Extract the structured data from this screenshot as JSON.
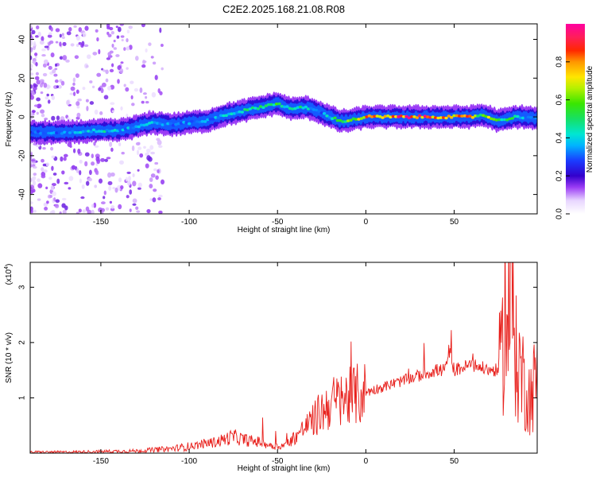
{
  "title": "C2E2.2025.168.21.08.R08",
  "chart_data": [
    {
      "type": "heatmap",
      "title": "C2E2.2025.168.21.08.R08",
      "xlabel": "Height of straight line (km)",
      "ylabel": "Frequency (Hz)",
      "xlim": [
        -190,
        97
      ],
      "ylim": [
        -50,
        48
      ],
      "xticks": [
        -150,
        -100,
        -50,
        0,
        50
      ],
      "yticks": [
        -40,
        -20,
        0,
        20,
        40
      ],
      "colorbar": {
        "label": "Normalized spectral amplitude",
        "range": [
          0,
          1
        ],
        "ticks": [
          0.0,
          0.2,
          0.4,
          0.6,
          0.8
        ],
        "colormap": "white-purple-blue-cyan-green-yellow-red-magenta"
      },
      "ridge": {
        "x": [
          -190,
          -170,
          -150,
          -140,
          -130,
          -120,
          -110,
          -100,
          -90,
          -80,
          -70,
          -60,
          -50,
          -45,
          -40,
          -35,
          -30,
          -25,
          -20,
          -15,
          -10,
          0,
          10,
          20,
          30,
          40,
          50,
          60,
          65,
          70,
          75,
          80,
          85,
          90,
          97
        ],
        "freq": [
          -8,
          -8,
          -7,
          -7,
          -5,
          -3,
          -4,
          -3,
          -2,
          1,
          3,
          5,
          7,
          5,
          4,
          5,
          4,
          2,
          0,
          -2,
          -2,
          0,
          0,
          0,
          0,
          0,
          0,
          0,
          1,
          0,
          -2,
          -1,
          0,
          0,
          -1
        ],
        "amplitude": [
          0.3,
          0.35,
          0.45,
          0.4,
          0.35,
          0.4,
          0.35,
          0.35,
          0.35,
          0.4,
          0.45,
          0.5,
          0.55,
          0.45,
          0.45,
          0.5,
          0.4,
          0.35,
          0.45,
          0.55,
          0.6,
          0.8,
          0.85,
          0.9,
          0.9,
          0.85,
          0.85,
          0.8,
          0.6,
          0.7,
          0.5,
          0.55,
          0.45,
          0.4,
          0.35
        ]
      }
    },
    {
      "type": "line",
      "xlabel": "Height of straight line (km)",
      "ylabel": "SNR (10 * v/v)",
      "y_multiplier": "(x10",
      "y_multiplier_exp": "4",
      "y_multiplier_close": ")",
      "xlim": [
        -190,
        97
      ],
      "ylim": [
        0,
        3.45
      ],
      "xticks": [
        -150,
        -100,
        -50,
        0,
        50
      ],
      "yticks": [
        1,
        2,
        3
      ],
      "color": "#e8201c",
      "series": [
        {
          "x": [
            -190,
            -170,
            -150,
            -130,
            -120,
            -110,
            -100,
            -95,
            -90,
            -85,
            -80,
            -75,
            -70,
            -65,
            -60,
            -55,
            -50,
            -45,
            -40,
            -35,
            -30,
            -25,
            -20,
            -15,
            -10,
            -5,
            0,
            5,
            10,
            15,
            20,
            25,
            30,
            35,
            40,
            45,
            47,
            50,
            55,
            60,
            65,
            70,
            75,
            77,
            79,
            80,
            82,
            85,
            88,
            90,
            93,
            97
          ],
          "y": [
            0.02,
            0.02,
            0.03,
            0.04,
            0.06,
            0.08,
            0.12,
            0.15,
            0.18,
            0.2,
            0.25,
            0.3,
            0.25,
            0.22,
            0.2,
            0.15,
            0.12,
            0.15,
            0.3,
            0.45,
            0.6,
            0.75,
            0.9,
            0.95,
            1.0,
            1.05,
            1.1,
            1.15,
            1.2,
            1.25,
            1.3,
            1.35,
            1.4,
            1.45,
            1.5,
            1.5,
            1.85,
            1.5,
            1.55,
            1.6,
            1.55,
            1.5,
            1.5,
            1.55,
            3.3,
            1.6,
            3.3,
            1.7,
            1.5,
            1.2,
            1.0,
            1.4
          ]
        }
      ]
    }
  ]
}
